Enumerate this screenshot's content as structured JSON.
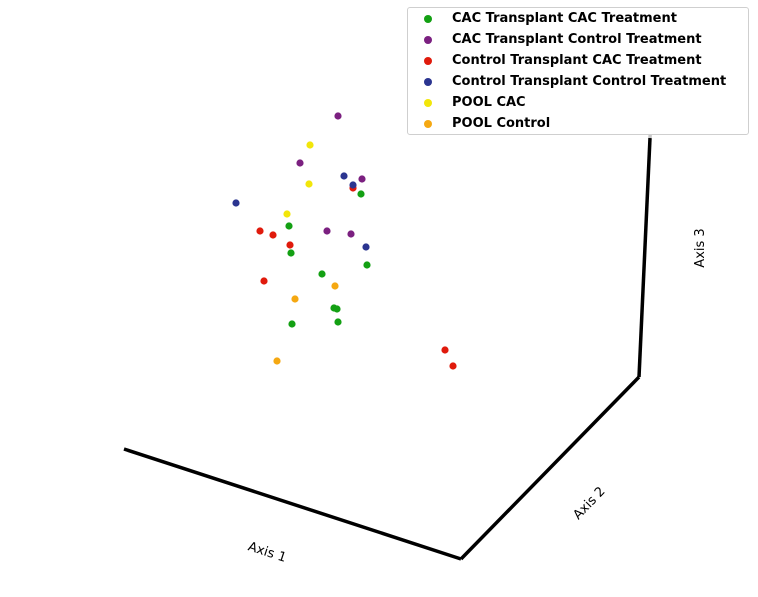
{
  "chart_data": {
    "type": "scatter",
    "projection": "3d",
    "grid": false,
    "axes": {
      "x_label": "Axis 1",
      "y_label": "Axis 2",
      "z_label": "Axis 3"
    },
    "legend": {
      "placement": "top-right"
    },
    "series": [
      {
        "name": "CAC Transplant CAC Treatment",
        "color": "#13a013",
        "points": [
          [
            289,
            226
          ],
          [
            291,
            253
          ],
          [
            361,
            194
          ],
          [
            322,
            274
          ],
          [
            367,
            265
          ],
          [
            334,
            308
          ],
          [
            337,
            309
          ],
          [
            338,
            322
          ],
          [
            292,
            324
          ]
        ]
      },
      {
        "name": "CAC Transplant Control Treatment",
        "color": "#7b2080",
        "points": [
          [
            338,
            116
          ],
          [
            300,
            163
          ],
          [
            362,
            179
          ],
          [
            327,
            231
          ],
          [
            351,
            234
          ]
        ]
      },
      {
        "name": "Control Transplant CAC Treatment",
        "color": "#e01a0c",
        "points": [
          [
            353,
            188
          ],
          [
            260,
            231
          ],
          [
            273,
            235
          ],
          [
            290,
            245
          ],
          [
            264,
            281
          ],
          [
            445,
            350
          ],
          [
            453,
            366
          ]
        ]
      },
      {
        "name": "Control Transplant Control Treatment",
        "color": "#2b3590",
        "points": [
          [
            236,
            203
          ],
          [
            344,
            176
          ],
          [
            353,
            185
          ],
          [
            366,
            247
          ]
        ]
      },
      {
        "name": "POOL CAC",
        "color": "#f2e60a",
        "points": [
          [
            310,
            145
          ],
          [
            309,
            184
          ],
          [
            287,
            214
          ]
        ]
      },
      {
        "name": "POOL Control",
        "color": "#f5a812",
        "points": [
          [
            335,
            286
          ],
          [
            295,
            299
          ],
          [
            277,
            361
          ]
        ]
      }
    ]
  }
}
